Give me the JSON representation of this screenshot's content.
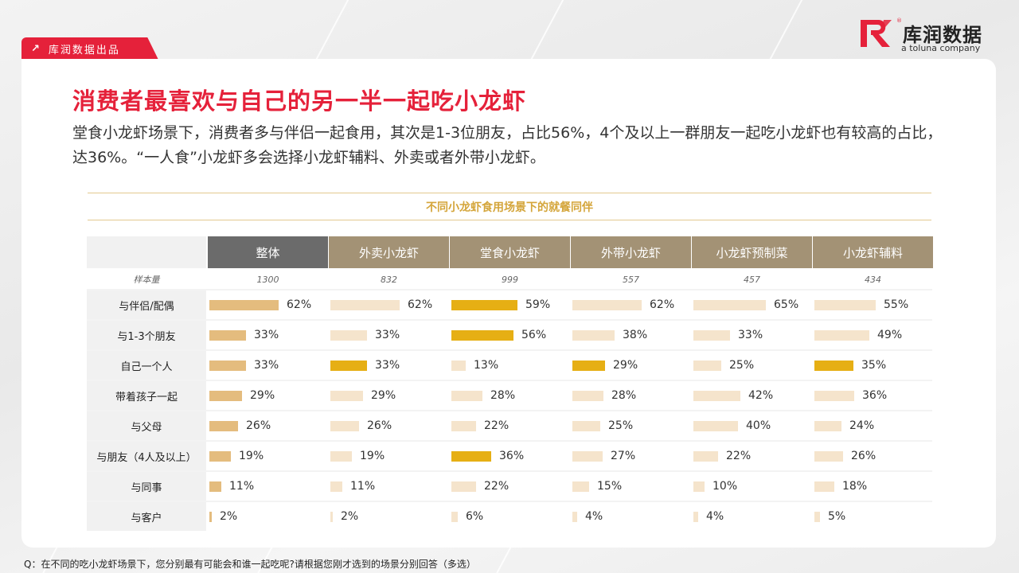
{
  "header": {
    "tag_label": "库润数据出品",
    "tag_icon": "arrow-up-right-icon"
  },
  "logo": {
    "mark": "R",
    "name_cn": "库润数据",
    "name_en": "a toluna company",
    "registered": "®"
  },
  "title": "消费者最喜欢与自己的另一半一起吃小龙虾",
  "subtitle": "堂食小龙虾场景下，消费者多与伴侣一起食用，其次是1-3位朋友，占比56%，4个及以上一群朋友一起吃小龙虾也有较高的占比，达36%。“一人食”小龙虾多会选择小龙虾辅料、外卖或者外带小龙虾。",
  "footnote": "Q：在不同的吃小龙虾场景下，您分别最有可能会和谁一起吃呢?请根据您刚才选到的场景分别回答（多选）",
  "colors": {
    "brand_red": "#e5213a",
    "header_overall": "#6b6b6b",
    "header_scene": "#a39275",
    "bar_overall": "#e4bc7e",
    "bar_light": "#f5e4cc",
    "bar_highlight": "#e6af14"
  },
  "chart_data": {
    "type": "table",
    "title": "不同小龙虾食用场景下的就餐同伴",
    "sample_label": "样本量",
    "columns": [
      "整体",
      "外卖小龙虾",
      "堂食小龙虾",
      "外带小龙虾",
      "小龙虾预制菜",
      "小龙虾辅料"
    ],
    "sample_sizes": [
      "1300",
      "832",
      "999",
      "557",
      "457",
      "434"
    ],
    "rows": [
      {
        "label": "与伴侣/配偶",
        "values": [
          62,
          62,
          59,
          62,
          65,
          55
        ],
        "display": [
          "62%",
          "62%",
          "59%",
          "62%",
          "65%",
          "55%"
        ]
      },
      {
        "label": "与1-3个朋友",
        "values": [
          33,
          33,
          56,
          38,
          33,
          49
        ],
        "display": [
          "33%",
          "33%",
          "56%",
          "38%",
          "33%",
          "49%"
        ]
      },
      {
        "label": "自己一个人",
        "values": [
          33,
          33,
          13,
          29,
          25,
          35
        ],
        "display": [
          "33%",
          "33%",
          "13%",
          "29%",
          "25%",
          "35%"
        ]
      },
      {
        "label": "带着孩子一起",
        "values": [
          29,
          29,
          28,
          28,
          42,
          36
        ],
        "display": [
          "29%",
          "29%",
          "28%",
          "28%",
          "42%",
          "36%"
        ]
      },
      {
        "label": "与父母",
        "values": [
          26,
          26,
          22,
          25,
          40,
          24
        ],
        "display": [
          "26%",
          "26%",
          "22%",
          "25%",
          "40%",
          "24%"
        ]
      },
      {
        "label": "与朋友（4人及以上）",
        "values": [
          19,
          19,
          36,
          27,
          22,
          26
        ],
        "display": [
          "19%",
          "19%",
          "36%",
          "27%",
          "22%",
          "26%"
        ]
      },
      {
        "label": "与同事",
        "values": [
          11,
          11,
          22,
          15,
          10,
          18
        ],
        "display": [
          "11%",
          "11%",
          "22%",
          "15%",
          "10%",
          "18%"
        ]
      },
      {
        "label": "与客户",
        "values": [
          2,
          2,
          6,
          4,
          4,
          5
        ],
        "display": [
          "2%",
          "2%",
          "6%",
          "4%",
          "4%",
          "5%"
        ]
      }
    ],
    "highlights": [
      {
        "row": 0,
        "col": 2
      },
      {
        "row": 1,
        "col": 2
      },
      {
        "row": 2,
        "col": 1
      },
      {
        "row": 2,
        "col": 3
      },
      {
        "row": 2,
        "col": 5
      },
      {
        "row": 5,
        "col": 2
      }
    ],
    "value_max": 100
  }
}
